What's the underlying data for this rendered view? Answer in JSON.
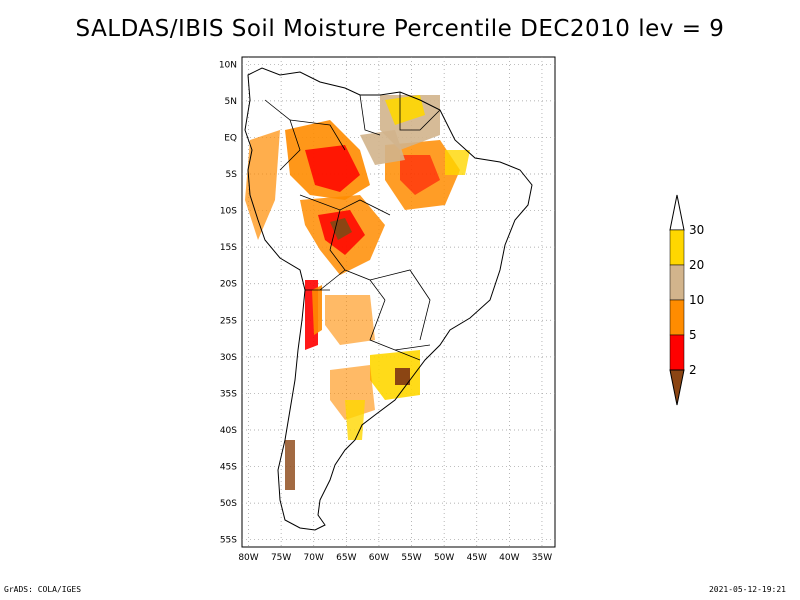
{
  "title": "SALDAS/IBIS Soil Moisture Percentile DEC2010 lev = 9",
  "map": {
    "lon_labels": [
      "80W",
      "75W",
      "70W",
      "65W",
      "60W",
      "55W",
      "50W",
      "45W",
      "40W",
      "35W"
    ],
    "lat_labels": [
      "10N",
      "5N",
      "EQ",
      "5S",
      "10S",
      "15S",
      "20S",
      "25S",
      "30S",
      "35S",
      "40S",
      "45S",
      "50S",
      "55S"
    ],
    "lon_range": [
      -81,
      -33
    ],
    "lat_range": [
      -56,
      11
    ],
    "grid": "dotted"
  },
  "colorbar": {
    "levels": [
      "2",
      "5",
      "10",
      "20",
      "30"
    ],
    "colors": [
      "#8b4513",
      "#ff0000",
      "#ff8c00",
      "#d2b48c",
      "#ffd700",
      "#ffffff"
    ]
  },
  "footer": {
    "left": "GrADS: COLA/IGES",
    "right": "2021-05-12-19:21"
  }
}
